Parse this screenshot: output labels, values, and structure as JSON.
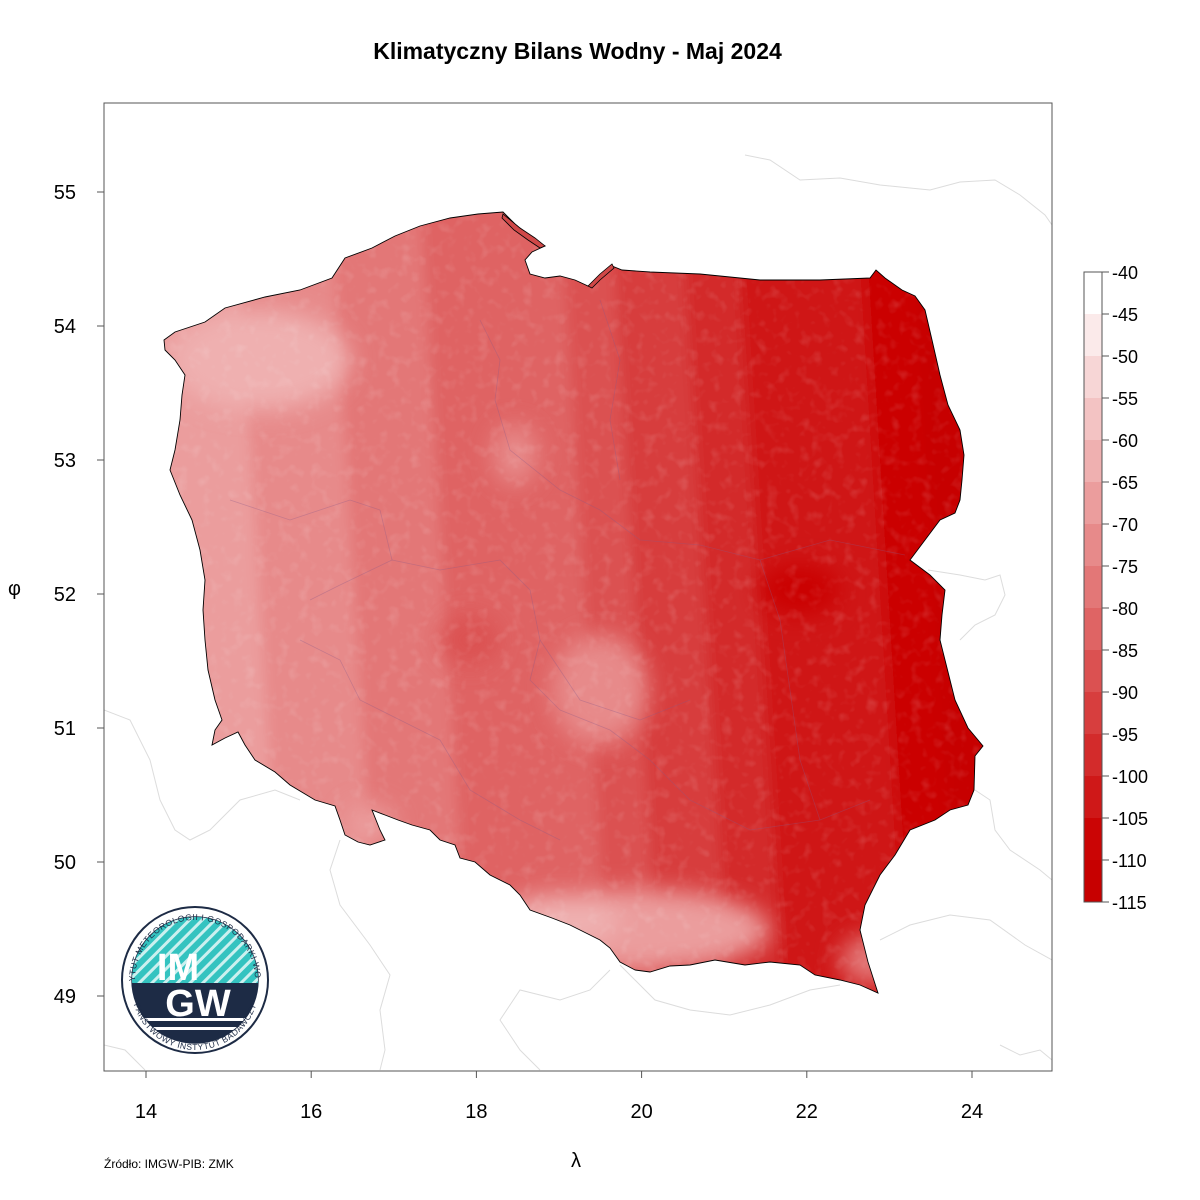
{
  "title": "Klimatyczny Bilans Wodny - Maj 2024",
  "axes": {
    "x_label": "λ",
    "y_label": "φ",
    "x_ticks": [
      "14",
      "16",
      "18",
      "20",
      "22",
      "24"
    ],
    "y_ticks": [
      "55",
      "54",
      "53",
      "52",
      "51",
      "50",
      "49"
    ],
    "x_range": [
      13.5,
      25.0
    ],
    "y_range": [
      48.45,
      55.65
    ]
  },
  "legend": {
    "labels": [
      "-40",
      "-45",
      "-50",
      "-55",
      "-60",
      "-65",
      "-70",
      "-75",
      "-80",
      "-85",
      "-90",
      "-95",
      "-100",
      "-105",
      "-110",
      "-115"
    ],
    "colors": [
      "#ffffff",
      "#fbeaea",
      "#f7d6d6",
      "#f3c3c3",
      "#efb0b0",
      "#eb9d9d",
      "#e78a8a",
      "#e37777",
      "#df6464",
      "#db5151",
      "#d73e3e",
      "#d32b2b",
      "#cf1818",
      "#cb0505",
      "#c70000"
    ]
  },
  "source": "Źródło: IMGW-PIB: ZMK",
  "logo": {
    "text_main_top": "IM",
    "text_main_bottom": "GW",
    "ring_text_top": "INSTYTUT METEOROLOGII I GOSPODARKI WODNEJ",
    "ring_text_bottom": "PAŃSTWOWY INSTYTUT BADAWCZY",
    "color_teal": "#34c3c0",
    "color_navy": "#1d2b45"
  },
  "map": {
    "region": "Polska",
    "color_scale": "red",
    "driest_area": "east"
  }
}
